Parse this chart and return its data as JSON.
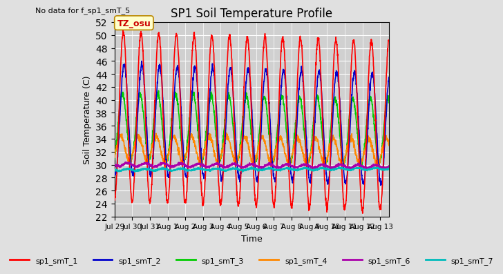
{
  "title": "SP1 Soil Temperature Profile",
  "no_data_text": "No data for f_sp1_smT_5",
  "xlabel": "Time",
  "ylabel": "Soil Temperature (C)",
  "ylim": [
    22,
    52
  ],
  "tz_label": "TZ_osu",
  "legend_entries": [
    "sp1_smT_1",
    "sp1_smT_2",
    "sp1_smT_3",
    "sp1_smT_4",
    "sp1_smT_6",
    "sp1_smT_7"
  ],
  "line_colors": {
    "sp1_smT_1": "#ff0000",
    "sp1_smT_2": "#0000cc",
    "sp1_smT_3": "#00cc00",
    "sp1_smT_4": "#ff8800",
    "sp1_smT_6": "#aa00aa",
    "sp1_smT_7": "#00bbbb"
  },
  "xtick_labels": [
    "Jul 29",
    "Jul 30",
    "Jul 31",
    "Aug 1",
    "Aug 2",
    "Aug 3",
    "Aug 4",
    "Aug 5",
    "Aug 6",
    "Aug 7",
    "Aug 8",
    "Aug 9",
    "Aug 10",
    "Aug 11",
    "Aug 12",
    "Aug 13"
  ],
  "smT_1_base": 37.5,
  "smT_1_amp": 13.0,
  "smT_1_phase": 0.25,
  "smT_1_trend": -0.1,
  "smT_2_base": 37.0,
  "smT_2_amp": 8.5,
  "smT_2_phase": 0.3,
  "smT_2_trend": -0.1,
  "smT_3_base": 36.0,
  "smT_3_amp": 5.0,
  "smT_3_phase": 0.2,
  "smT_3_trend": -0.05,
  "smT_4_base": 32.5,
  "smT_4_amp": 2.0,
  "smT_4_phase": 0.1,
  "smT_4_trend": -0.03,
  "smT_6_base": 30.0,
  "smT_6_amp": 0.25,
  "smT_6_phase": 0.5,
  "smT_6_trend": -0.02,
  "smT_7_base": 29.2,
  "smT_7_amp": 0.15,
  "smT_7_phase": 0.5,
  "smT_7_trend": 0.01,
  "bg_color": "#e0e0e0",
  "plot_bg_color": "#d0d0d0"
}
